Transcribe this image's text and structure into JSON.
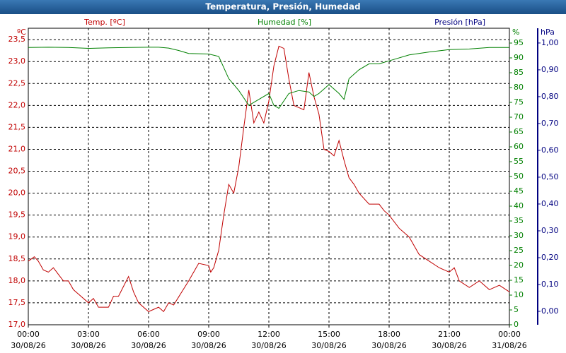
{
  "chart_data": {
    "type": "line",
    "title": "Temperatura, Presión, Humedad",
    "xlim": [
      0,
      24
    ],
    "xticks": [
      {
        "value": 0,
        "label": "00:00"
      },
      {
        "value": 3,
        "label": "03:00"
      },
      {
        "value": 6,
        "label": "06:00"
      },
      {
        "value": 9,
        "label": "09:00"
      },
      {
        "value": 12,
        "label": "12:00"
      },
      {
        "value": 15,
        "label": "15:00"
      },
      {
        "value": 18,
        "label": "18:00"
      },
      {
        "value": 21,
        "label": "21:00"
      },
      {
        "value": 24,
        "label": "00:00"
      }
    ],
    "xtick_dates": [
      "30/08/26",
      "30/08/26",
      "30/08/26",
      "30/08/26",
      "30/08/26",
      "30/08/26",
      "30/08/26",
      "30/08/26",
      "31/08/26"
    ],
    "y_label": "Temp. [ºC]",
    "y_unit": "ºC",
    "ylim": [
      17.0,
      23.76
    ],
    "yticks": [
      {
        "value": 17.0,
        "label": "17,0"
      },
      {
        "value": 17.5,
        "label": "17,5"
      },
      {
        "value": 18.0,
        "label": "18,0"
      },
      {
        "value": 18.5,
        "label": "18,5"
      },
      {
        "value": 19.0,
        "label": "19,0"
      },
      {
        "value": 19.5,
        "label": "19,5"
      },
      {
        "value": 20.0,
        "label": "20,0"
      },
      {
        "value": 20.5,
        "label": "20,5"
      },
      {
        "value": 21.0,
        "label": "21,0"
      },
      {
        "value": 21.5,
        "label": "21,5"
      },
      {
        "value": 22.0,
        "label": "22,0"
      },
      {
        "value": 22.5,
        "label": "22,5"
      },
      {
        "value": 23.0,
        "label": "23,0"
      },
      {
        "value": 23.5,
        "label": "23,5"
      }
    ],
    "y2_label": "Humedad [%]",
    "y2_unit": "%",
    "y2lim": [
      0,
      100
    ],
    "y2ticks": [
      0,
      5,
      10,
      15,
      20,
      25,
      30,
      35,
      40,
      45,
      50,
      55,
      60,
      65,
      70,
      75,
      80,
      85,
      90,
      95
    ],
    "y3_label": "Presión [hPa]",
    "y3_unit": "hPa",
    "y3lim": [
      -0.05,
      1.055
    ],
    "y3ticks": [
      {
        "value": 0,
        "label": "0,00"
      },
      {
        "value": 0.1,
        "label": "0,10"
      },
      {
        "value": 0.2,
        "label": "0,20"
      },
      {
        "value": 0.3,
        "label": "0,30"
      },
      {
        "value": 0.4,
        "label": "0,40"
      },
      {
        "value": 0.5,
        "label": "0,50"
      },
      {
        "value": 0.6,
        "label": "0,60"
      },
      {
        "value": 0.7,
        "label": "0,70"
      },
      {
        "value": 0.8,
        "label": "0,80"
      },
      {
        "value": 0.9,
        "label": "0,90"
      },
      {
        "value": 1.0,
        "label": "1,00"
      }
    ],
    "grid": true,
    "series": [
      {
        "name": "Temp. [ºC]",
        "color": "#c00000",
        "axis": "y",
        "x": [
          0,
          0.3,
          0.5,
          0.75,
          1.0,
          1.25,
          1.5,
          1.75,
          2.0,
          2.25,
          2.5,
          3.0,
          3.25,
          3.5,
          4.0,
          4.25,
          4.5,
          5.0,
          5.25,
          5.5,
          6.0,
          6.5,
          6.75,
          7.0,
          7.25,
          8.0,
          8.5,
          9.0,
          9.1,
          9.25,
          9.5,
          9.75,
          10.0,
          10.25,
          10.5,
          10.75,
          11.0,
          11.25,
          11.5,
          11.75,
          12.0,
          12.25,
          12.5,
          12.75,
          13.0,
          13.25,
          13.5,
          13.75,
          14.0,
          14.25,
          14.5,
          14.75,
          15.0,
          15.25,
          15.5,
          15.75,
          16.0,
          16.25,
          16.5,
          17.0,
          17.5,
          17.75,
          18.0,
          18.5,
          19.0,
          19.5,
          20.0,
          20.5,
          21.0,
          21.25,
          21.5,
          22.0,
          22.5,
          23.0,
          23.5,
          24.0
        ],
        "values": [
          18.45,
          18.55,
          18.45,
          18.25,
          18.2,
          18.3,
          18.15,
          18.0,
          18.0,
          17.8,
          17.7,
          17.5,
          17.6,
          17.4,
          17.4,
          17.65,
          17.65,
          18.1,
          17.75,
          17.5,
          17.3,
          17.4,
          17.3,
          17.5,
          17.45,
          18.0,
          18.4,
          18.35,
          18.2,
          18.3,
          18.7,
          19.5,
          20.2,
          20.0,
          20.6,
          21.5,
          22.35,
          21.6,
          21.85,
          21.6,
          22.1,
          22.9,
          23.35,
          23.3,
          22.6,
          22.0,
          21.95,
          21.9,
          22.75,
          22.2,
          21.8,
          21.0,
          20.95,
          20.85,
          21.2,
          20.75,
          20.35,
          20.2,
          20.0,
          19.75,
          19.75,
          19.6,
          19.5,
          19.2,
          19.0,
          18.6,
          18.45,
          18.3,
          18.2,
          18.3,
          18.0,
          17.85,
          18.0,
          17.8,
          17.9,
          17.75
        ]
      },
      {
        "name": "Humedad [%]",
        "color": "#008000",
        "axis": "y2",
        "x": [
          0,
          1,
          2,
          3,
          4,
          5,
          6,
          6.5,
          7,
          7.5,
          8,
          8.5,
          9,
          9.5,
          10,
          10.5,
          11,
          11.5,
          12,
          12.25,
          12.5,
          13,
          13.5,
          14,
          14.25,
          14.5,
          15,
          15.5,
          15.75,
          16,
          16.5,
          17,
          17.5,
          18,
          19,
          20,
          21,
          22,
          23,
          24
        ],
        "values": [
          93.5,
          93.6,
          93.5,
          93.2,
          93.4,
          93.5,
          93.6,
          93.6,
          93.3,
          92.5,
          91.5,
          91.4,
          91.3,
          90.5,
          83,
          79,
          74,
          76,
          78,
          74,
          73,
          78,
          79,
          78.5,
          77,
          78,
          81,
          78,
          76,
          83,
          86,
          88,
          88,
          89,
          91,
          92,
          92.8,
          93,
          93.5,
          93.5
        ]
      }
    ]
  }
}
